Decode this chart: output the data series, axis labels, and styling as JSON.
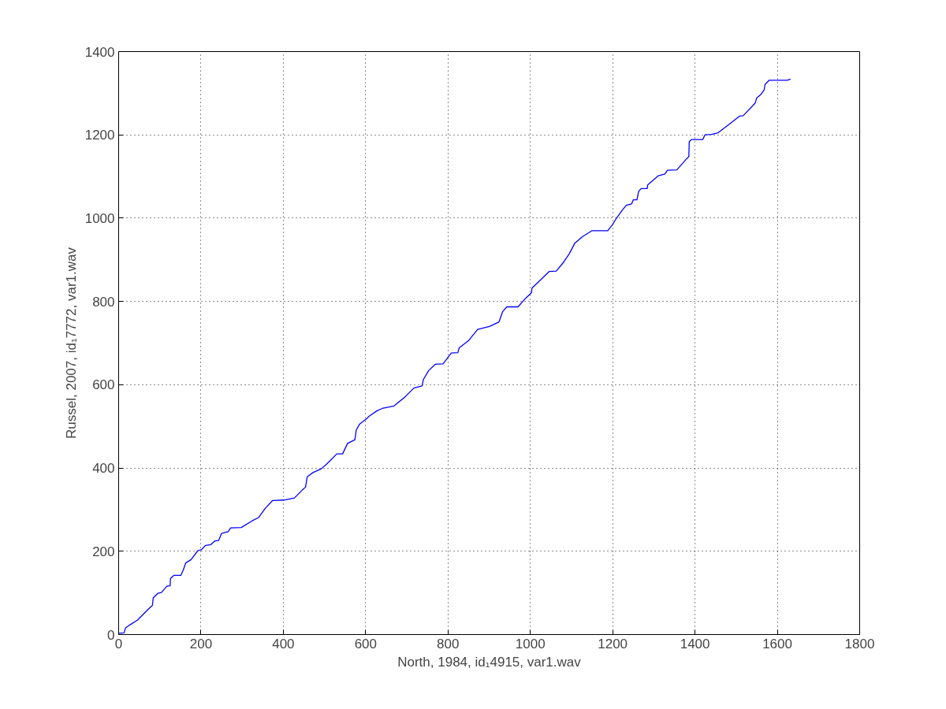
{
  "chart_data": {
    "type": "line",
    "xlabel": "North, 1984, id₁4915, var1.wav",
    "ylabel": "Russel, 2007, id₁7772, var1.wav",
    "xlim": [
      0,
      1800
    ],
    "ylim": [
      0,
      1400
    ],
    "xticks": [
      0,
      200,
      400,
      600,
      800,
      1000,
      1200,
      1400,
      1600,
      1800
    ],
    "yticks": [
      0,
      200,
      400,
      600,
      800,
      1000,
      1200,
      1400
    ],
    "grid": true,
    "marker": "none",
    "line_style": "solid",
    "series": [
      {
        "color": "#0000ff",
        "x": [
          1,
          13,
          17,
          27,
          46,
          75,
          82,
          84,
          95,
          104,
          117,
          125,
          126,
          134,
          151,
          157,
          163,
          176,
          192,
          201,
          211,
          224,
          234,
          243,
          250,
          266,
          272,
          298,
          324,
          340,
          356,
          374,
          401,
          427,
          446,
          454,
          458,
          472,
          492,
          505,
          530,
          544,
          556,
          574,
          577,
          585,
          604,
          608,
          627,
          640,
          669,
          697,
          717,
          737,
          740,
          753,
          769,
          788,
          808,
          824,
          827,
          850,
          872,
          901,
          924,
          933,
          943,
          970,
          988,
          1003,
          1004,
          1021,
          1046,
          1063,
          1079,
          1095,
          1108,
          1127,
          1150,
          1188,
          1200,
          1208,
          1224,
          1233,
          1246,
          1250,
          1259,
          1263,
          1269,
          1284,
          1285,
          1311,
          1327,
          1333,
          1356,
          1379,
          1385,
          1386,
          1392,
          1419,
          1424,
          1440,
          1456,
          1485,
          1508,
          1517,
          1546,
          1550,
          1560,
          1568,
          1570,
          1580,
          1624,
          1632
        ],
        "values": [
          3,
          4,
          16,
          23,
          35,
          64,
          70,
          88,
          99,
          101,
          116,
          117,
          135,
          142,
          142,
          155,
          172,
          180,
          201,
          204,
          214,
          216,
          225,
          226,
          243,
          247,
          256,
          257,
          273,
          281,
          303,
          322,
          323,
          328,
          347,
          354,
          379,
          389,
          398,
          409,
          434,
          434,
          459,
          468,
          491,
          505,
          520,
          524,
          537,
          543,
          549,
          572,
          592,
          597,
          612,
          634,
          649,
          650,
          676,
          677,
          688,
          706,
          733,
          740,
          751,
          776,
          787,
          787,
          807,
          821,
          832,
          848,
          872,
          873,
          892,
          915,
          940,
          956,
          970,
          970,
          985,
          998,
          1020,
          1031,
          1034,
          1044,
          1044,
          1064,
          1071,
          1071,
          1080,
          1102,
          1106,
          1115,
          1116,
          1142,
          1148,
          1184,
          1189,
          1189,
          1200,
          1201,
          1205,
          1227,
          1245,
          1246,
          1276,
          1289,
          1297,
          1308,
          1321,
          1331,
          1331,
          1334
        ]
      }
    ]
  }
}
